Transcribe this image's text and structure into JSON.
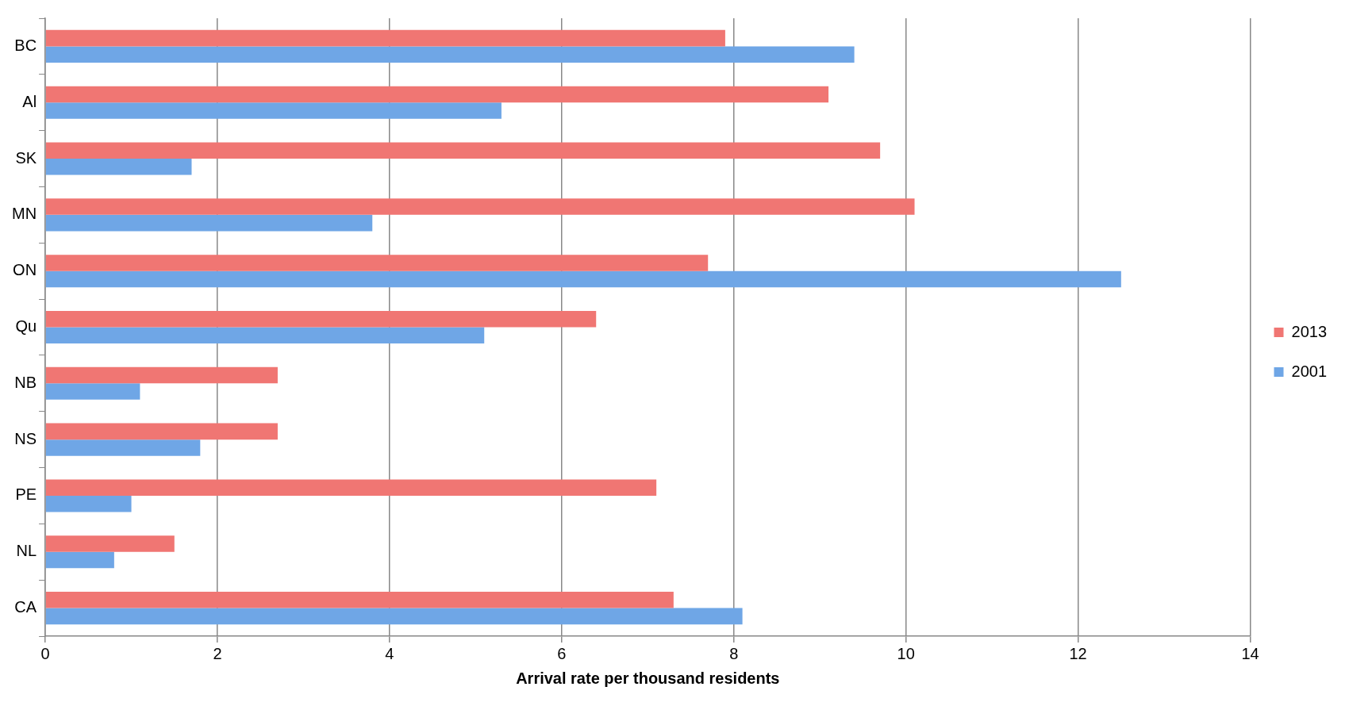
{
  "chart_data": {
    "type": "bar",
    "orientation": "horizontal",
    "xlabel": "Arrival rate per thousand residents",
    "categories": [
      "BC",
      "Al",
      "SK",
      "MN",
      "ON",
      "Qu",
      "NB",
      "NS",
      "PE",
      "NL",
      "CA"
    ],
    "series": [
      {
        "name": "2013",
        "color": "#f07673",
        "values": [
          7.9,
          9.1,
          9.7,
          10.1,
          7.7,
          6.4,
          2.7,
          2.7,
          7.1,
          1.5,
          7.3
        ]
      },
      {
        "name": "2001",
        "color": "#6fa6e6",
        "values": [
          9.4,
          5.3,
          1.7,
          3.8,
          12.5,
          5.1,
          1.1,
          1.8,
          1.0,
          0.8,
          8.1
        ]
      }
    ],
    "xlim": [
      0,
      14
    ],
    "xticks": [
      0,
      2,
      4,
      6,
      8,
      10,
      12,
      14
    ],
    "grid": "x",
    "legend": "right"
  }
}
